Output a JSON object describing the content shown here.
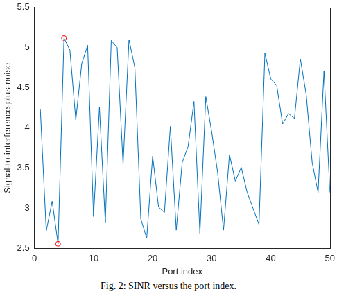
{
  "chart_data": {
    "type": "line",
    "x_label": "Port index",
    "y_label": "Signal-to-interference-plus-noise",
    "caption": "Fig. 2: SINR versus the port index.",
    "x": [
      1,
      2,
      3,
      4,
      5,
      6,
      7,
      8,
      9,
      10,
      11,
      12,
      13,
      14,
      15,
      16,
      17,
      18,
      19,
      20,
      21,
      22,
      23,
      24,
      25,
      26,
      27,
      28,
      29,
      30,
      31,
      32,
      33,
      34,
      35,
      36,
      37,
      38,
      39,
      40,
      41,
      42,
      43,
      44,
      45,
      46,
      47,
      48,
      49,
      50
    ],
    "values": [
      4.23,
      2.72,
      3.09,
      2.56,
      5.12,
      4.97,
      4.1,
      4.8,
      5.03,
      2.9,
      4.26,
      2.82,
      5.09,
      5.0,
      3.55,
      5.1,
      4.75,
      2.87,
      2.63,
      3.65,
      3.02,
      2.95,
      4.02,
      2.73,
      3.57,
      3.77,
      4.33,
      2.69,
      4.39,
      3.95,
      3.45,
      2.73,
      3.67,
      3.34,
      3.51,
      3.2,
      3.0,
      2.8,
      4.93,
      4.61,
      4.53,
      4.05,
      4.18,
      4.12,
      4.86,
      4.41,
      3.57,
      3.2,
      4.71,
      3.2
    ],
    "color": "#0072bd",
    "annotations": [
      {
        "x": 4,
        "y": 2.56,
        "marker": "circle",
        "color": "#ff0000"
      },
      {
        "x": 5,
        "y": 5.12,
        "marker": "circle",
        "color": "#ff0000"
      }
    ],
    "xlim": [
      0,
      50
    ],
    "xticks": [
      0,
      10,
      20,
      30,
      40,
      50
    ],
    "ylim": [
      2.5,
      5.5
    ],
    "yticks": [
      2.5,
      3,
      3.5,
      4,
      4.5,
      5,
      5.5
    ],
    "grid": false
  }
}
